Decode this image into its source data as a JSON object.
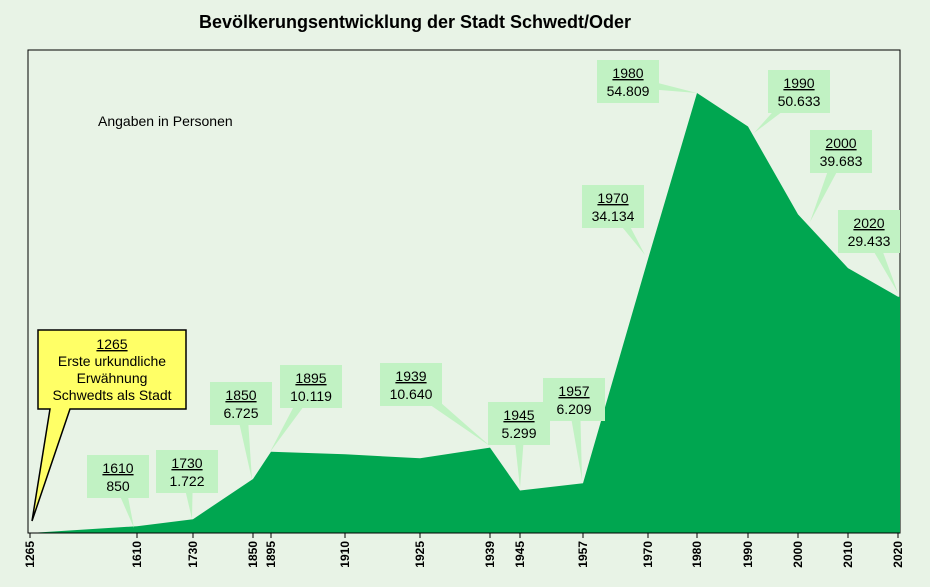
{
  "chart_data": {
    "type": "area",
    "title": "Bevölkerungsentwicklung der Stadt Schwedt/Oder",
    "subtitle": "Angaben in Personen",
    "color": "#00a650",
    "label_bg": "#c1f2c3",
    "note_bg": "#ffff66",
    "x_ticks": [
      "1265",
      "1610",
      "1730",
      "1850",
      "1895",
      "1910",
      "1925",
      "1939",
      "1945",
      "1957",
      "1970",
      "1980",
      "1990",
      "2000",
      "2010",
      "2020"
    ],
    "points": [
      {
        "label": "1265",
        "value": 0
      },
      {
        "label": "1610",
        "value": 850
      },
      {
        "label": "1730",
        "value": 1722
      },
      {
        "label": "1850",
        "value": 6725
      },
      {
        "label": "1895",
        "value": 10119
      },
      {
        "label": "1910",
        "value": 9800
      },
      {
        "label": "1925",
        "value": 9300
      },
      {
        "label": "1939",
        "value": 10640
      },
      {
        "label": "1945",
        "value": 5299
      },
      {
        "label": "1957",
        "value": 6209
      },
      {
        "label": "1970",
        "value": 34134
      },
      {
        "label": "1980",
        "value": 54809
      },
      {
        "label": "1990",
        "value": 50633
      },
      {
        "label": "2000",
        "value": 39683
      },
      {
        "label": "2010",
        "value": 33000
      },
      {
        "label": "2020",
        "value": 29433
      }
    ],
    "annotations": [
      {
        "year": "1610",
        "value": "850"
      },
      {
        "year": "1730",
        "value": "1.722"
      },
      {
        "year": "1850",
        "value": "6.725"
      },
      {
        "year": "1895",
        "value": "10.119"
      },
      {
        "year": "1939",
        "value": "10.640"
      },
      {
        "year": "1945",
        "value": "5.299"
      },
      {
        "year": "1957",
        "value": "6.209"
      },
      {
        "year": "1970",
        "value": "34.134"
      },
      {
        "year": "1980",
        "value": "54.809"
      },
      {
        "year": "1990",
        "value": "50.633"
      },
      {
        "year": "2000",
        "value": "39.683"
      },
      {
        "year": "2020",
        "value": "29.433"
      }
    ],
    "callout": {
      "year": "1265",
      "lines": [
        "Erste urkundliche",
        "Erwähnung",
        "Schwedts als Stadt"
      ]
    }
  }
}
